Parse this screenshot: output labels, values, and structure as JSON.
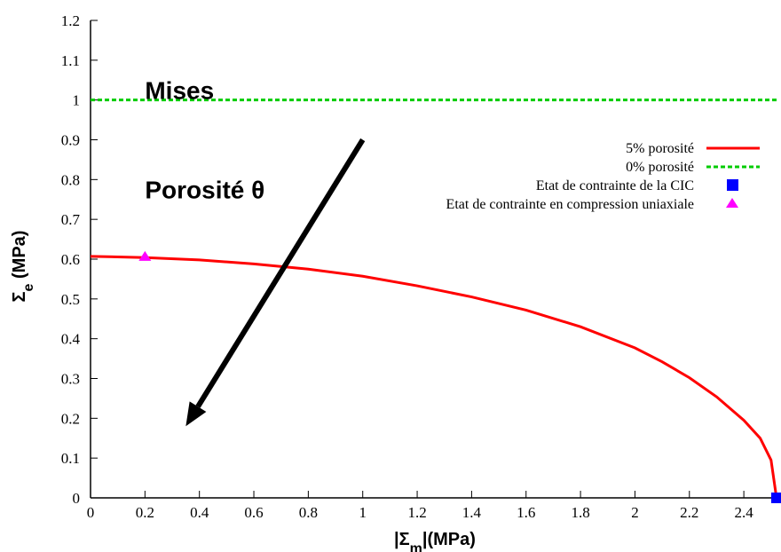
{
  "chart_data": {
    "type": "line",
    "xlabel_prefix": "|Σ",
    "xlabel_sub": "m",
    "xlabel_suffix": "|(MPa)",
    "ylabel_main": "Σ",
    "ylabel_sub": "e",
    "ylabel_suffix": " (MPa)",
    "xlim": [
      0,
      2.53
    ],
    "ylim": [
      0,
      1.2
    ],
    "xticks": [
      "0",
      "0.2",
      "0.4",
      "0.6",
      "0.8",
      "1",
      "1.2",
      "1.4",
      "1.6",
      "1.8",
      "2",
      "2.2",
      "2.4"
    ],
    "yticks": [
      "0",
      "0.1",
      "0.2",
      "0.3",
      "0.4",
      "0.5",
      "0.6",
      "0.7",
      "0.8",
      "0.9",
      "1",
      "1.1",
      "1.2"
    ],
    "grid": false,
    "legend_position": "top-right",
    "series": [
      {
        "name": "5% porosité",
        "color": "#ff0000",
        "style": "solid",
        "x": [
          0,
          0.2,
          0.4,
          0.6,
          0.8,
          1.0,
          1.2,
          1.4,
          1.6,
          1.8,
          2.0,
          2.1,
          2.2,
          2.3,
          2.4,
          2.46,
          2.5,
          2.52
        ],
        "y": [
          0.607,
          0.604,
          0.598,
          0.588,
          0.575,
          0.557,
          0.533,
          0.505,
          0.472,
          0.43,
          0.377,
          0.342,
          0.302,
          0.254,
          0.195,
          0.15,
          0.095,
          0.0
        ]
      },
      {
        "name": "0% porosité",
        "color": "#00cc00",
        "style": "dashed",
        "x": [
          0,
          2.53
        ],
        "y": [
          1.0,
          1.0
        ]
      },
      {
        "name": "Etat de contrainte de la CIC",
        "color": "#0000ff",
        "marker": "square",
        "x": [
          2.52
        ],
        "y": [
          0.0
        ]
      },
      {
        "name": "Etat de contrainte en compression uniaxiale",
        "color": "#ff00ff",
        "marker": "triangle",
        "x": [
          0.2
        ],
        "y": [
          0.607
        ]
      }
    ],
    "annotations": [
      {
        "text": "Mises",
        "x": 0.2,
        "y": 1.02
      },
      {
        "text": "Porosité θ",
        "x": 0.2,
        "y": 0.78
      }
    ],
    "arrow": {
      "from": [
        1.0,
        0.9
      ],
      "to": [
        0.35,
        0.18
      ]
    }
  }
}
